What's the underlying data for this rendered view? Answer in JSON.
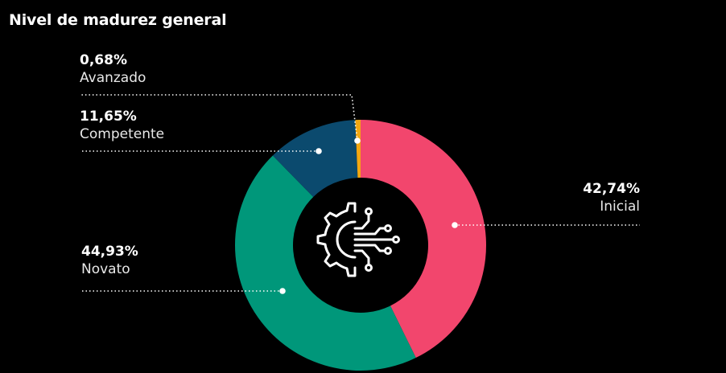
{
  "title": "Nivel de madurez general",
  "colors": {
    "background": "#000000",
    "inicial": "#f2466d",
    "novato": "#00977a",
    "competente": "#0b4a6e",
    "avanzado": "#f3a712"
  },
  "center_icon": "gear-circuit-icon",
  "chart_data": {
    "type": "pie",
    "subtype": "donut",
    "title": "Nivel de madurez general",
    "slices": [
      {
        "label": "Inicial",
        "value": 42.74,
        "display": "42,74%",
        "color": "#f2466d"
      },
      {
        "label": "Novato",
        "value": 44.93,
        "display": "44,93%",
        "color": "#00977a"
      },
      {
        "label": "Competente",
        "value": 11.65,
        "display": "11,65%",
        "color": "#0b4a6e"
      },
      {
        "label": "Avanzado",
        "value": 0.68,
        "display": "0,68%",
        "color": "#f3a712"
      }
    ]
  }
}
